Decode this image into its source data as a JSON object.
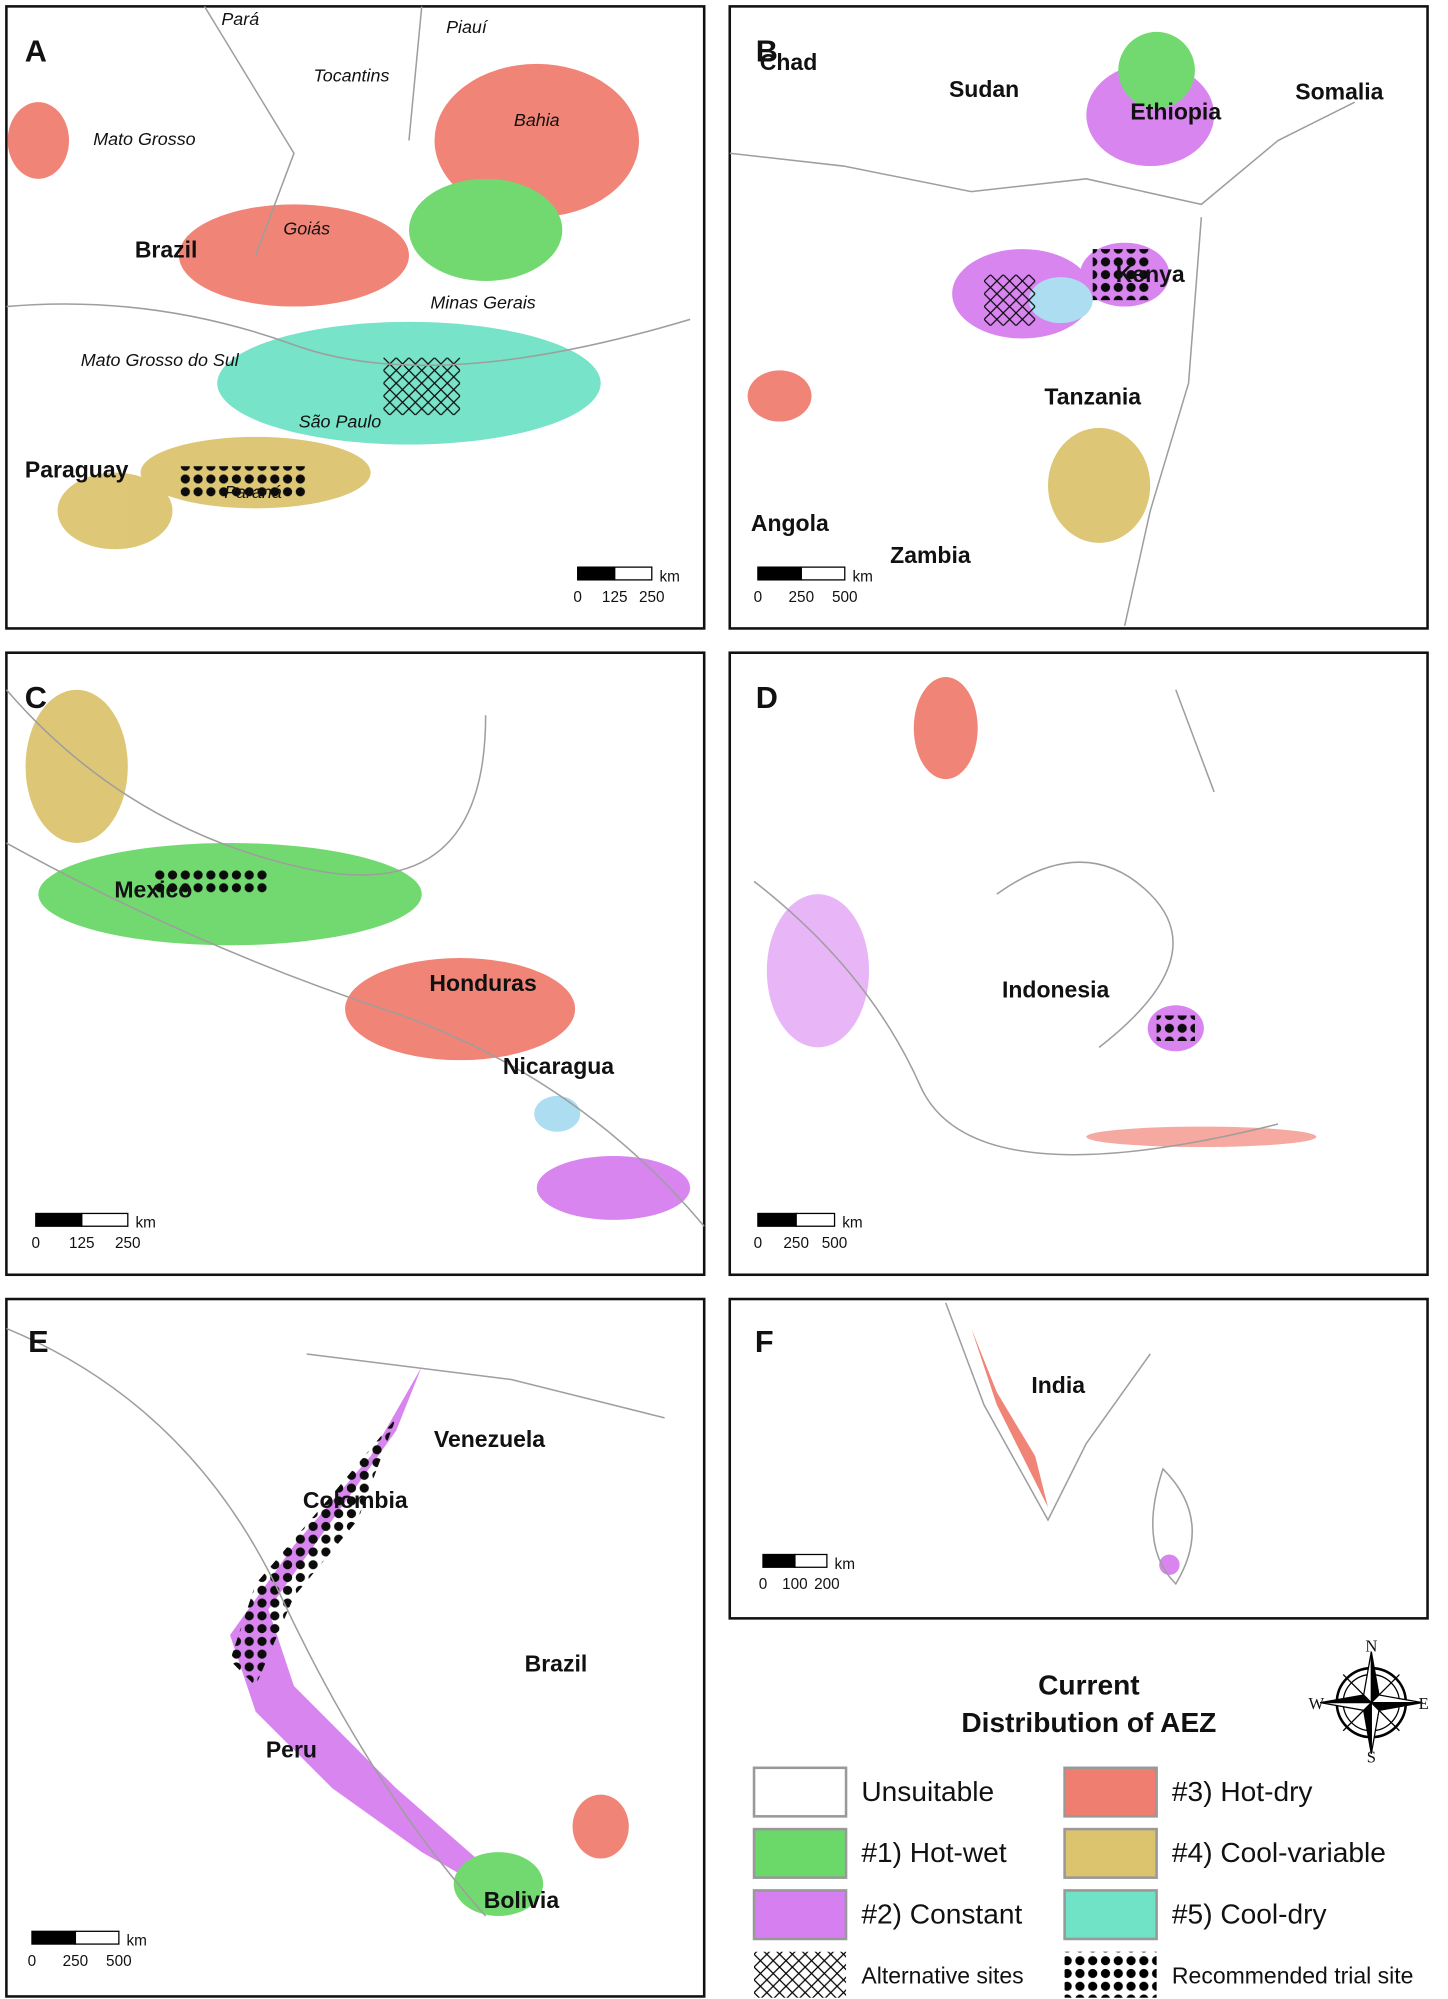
{
  "panels": [
    {
      "letter": "A",
      "places": [
        "Pará",
        "Piauí",
        "Tocantins",
        "Bahia",
        "Mato Grosso",
        "Brazil",
        "Goiás",
        "Minas Gerais",
        "Mato Grosso do Sul",
        "São Paulo",
        "Paraguay",
        "Paraná"
      ],
      "scale": {
        "ticks": [
          0,
          125,
          250
        ],
        "unit": "km"
      }
    },
    {
      "letter": "B",
      "places": [
        "Chad",
        "Sudan",
        "Somalia",
        "Ethiopia",
        "Kenya",
        "Tanzania",
        "Angola",
        "Zambia"
      ],
      "scale": {
        "ticks": [
          0,
          250,
          500
        ],
        "unit": "km"
      }
    },
    {
      "letter": "C",
      "places": [
        "Mexico",
        "Honduras",
        "Nicaragua"
      ],
      "scale": {
        "ticks": [
          0,
          125,
          250
        ],
        "unit": "km"
      }
    },
    {
      "letter": "D",
      "places": [
        "Indonesia"
      ],
      "scale": {
        "ticks": [
          0,
          250,
          500
        ],
        "unit": "km"
      }
    },
    {
      "letter": "E",
      "places": [
        "Venezuela",
        "Colombia",
        "Brazil",
        "Peru",
        "Bolivia"
      ],
      "scale": {
        "ticks": [
          0,
          250,
          500
        ],
        "unit": "km"
      }
    },
    {
      "letter": "F",
      "places": [
        "India"
      ],
      "scale": {
        "ticks": [
          0,
          100,
          200
        ],
        "unit": "km"
      }
    }
  ],
  "legend": {
    "title": [
      "Current",
      "Distribution of AEZ"
    ],
    "items": [
      {
        "label": "Unsuitable",
        "color": "#ffffff"
      },
      {
        "label": "#3) Hot-dry",
        "color": "#f07e70"
      },
      {
        "label": "#1) Hot-wet",
        "color": "#6bd86a"
      },
      {
        "label": "#4) Cool-variable",
        "color": "#dcc46f"
      },
      {
        "label": "#2) Constant",
        "color": "#d67ff0"
      },
      {
        "label": "#5) Cool-dry",
        "color": "#70e2c6"
      },
      {
        "label": "Alternative sites",
        "pattern": "hatch"
      },
      {
        "label": "Recommended trial site",
        "pattern": "dots"
      }
    ],
    "compass": [
      "N",
      "S",
      "E",
      "W"
    ]
  }
}
